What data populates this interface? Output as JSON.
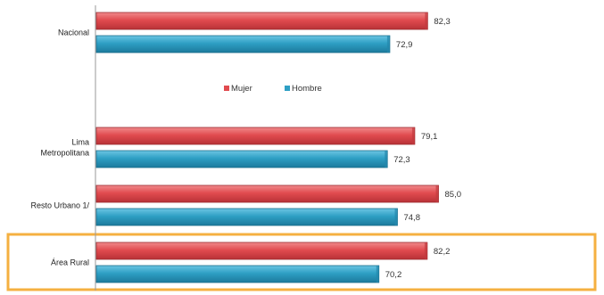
{
  "chart_data": {
    "type": "bar",
    "orientation": "horizontal",
    "title": "",
    "xlabel": "",
    "ylabel": "",
    "xlim": [
      0,
      100
    ],
    "grid": false,
    "legend_position": "center",
    "categories": [
      {
        "lines": [
          "Nacional"
        ]
      },
      {
        "lines": [
          "Lima",
          "Metropolitana"
        ]
      },
      {
        "lines": [
          "Resto Urbano 1/"
        ]
      },
      {
        "lines": [
          "Área Rural"
        ],
        "highlighted": true
      }
    ],
    "series": [
      {
        "name": "Mujer",
        "color": "#e14b4f",
        "values": [
          82.3,
          79.1,
          85.0,
          82.2
        ],
        "labels": [
          "82,3",
          "79,1",
          "85,0",
          "82,2"
        ]
      },
      {
        "name": "Hombre",
        "color": "#2e9fc4",
        "values": [
          72.9,
          72.3,
          74.8,
          70.2
        ],
        "labels": [
          "72,9",
          "72,3",
          "74,8",
          "70,2"
        ]
      }
    ],
    "highlight_color": "#f5b041"
  }
}
